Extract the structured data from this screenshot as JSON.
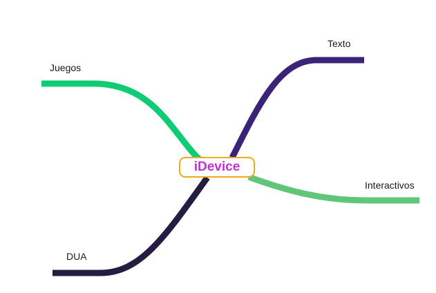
{
  "center": {
    "label": "iDevice",
    "border_color": "#f0a81c",
    "text_color": "#c233d6"
  },
  "branches": [
    {
      "label": "Juegos",
      "color": "#0fcc74"
    },
    {
      "label": "Texto",
      "color": "#3b2478"
    },
    {
      "label": "Interactivos",
      "color": "#62c67a"
    },
    {
      "label": "DUA",
      "color": "#261c42"
    }
  ]
}
